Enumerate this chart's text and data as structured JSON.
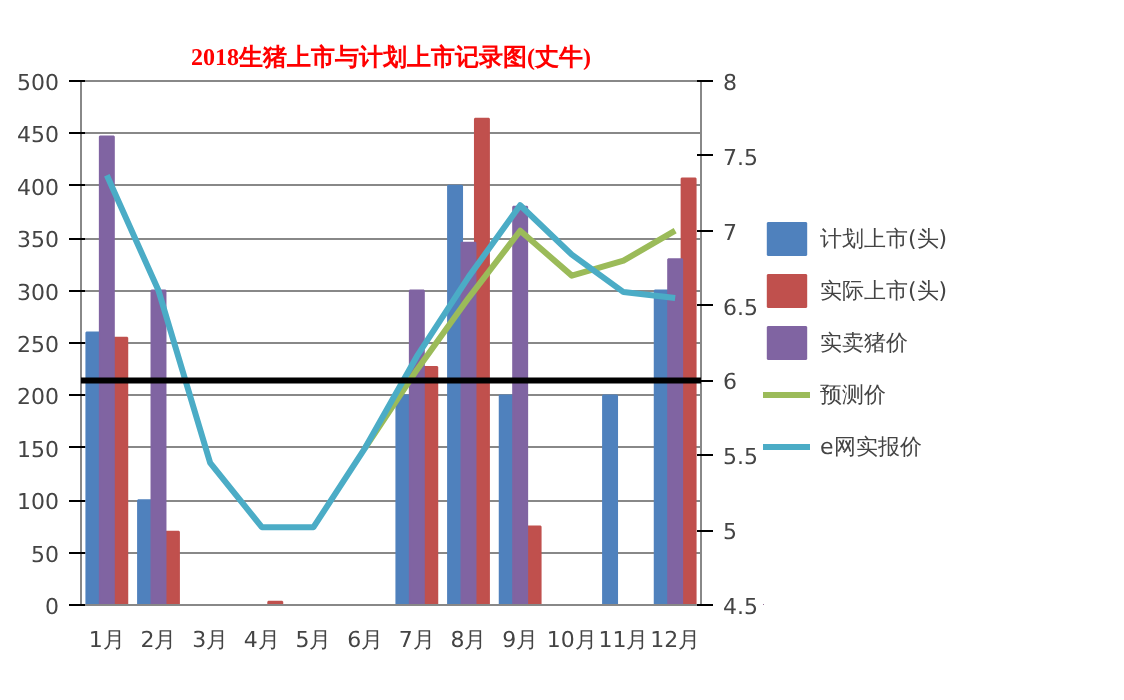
{
  "chart_data": {
    "type": "bar",
    "title": "2018生猪上市与计划上市记录图(丈牛)",
    "categories": [
      "1月",
      "2月",
      "3月",
      "4月",
      "5月",
      "6月",
      "7月",
      "8月",
      "9月",
      "10月",
      "11月",
      "12月"
    ],
    "series": [
      {
        "name": "计划上市(头)",
        "color": "#4f81bd",
        "values": [
          260,
          100,
          null,
          null,
          null,
          null,
          200,
          400,
          200,
          null,
          200,
          300
        ]
      },
      {
        "name": "实际上市(头)",
        "color": "#c0504d",
        "values": [
          255,
          70,
          null,
          3,
          null,
          null,
          227,
          464,
          75,
          null,
          null,
          407
        ]
      },
      {
        "name": "实卖猪价",
        "color": "#8064a2",
        "axis": "y2",
        "values": [
          7.63,
          6.6,
          null,
          null,
          null,
          null,
          6.6,
          6.92,
          7.16,
          null,
          null,
          6.81
        ]
      },
      {
        "name": "预测价",
        "color": "#9bbb59",
        "type": "line",
        "axis": "y2",
        "values": [
          null,
          null,
          null,
          null,
          null,
          5.55,
          6.07,
          6.55,
          7.0,
          6.7,
          6.8,
          7.0
        ]
      },
      {
        "name": "e网实报价",
        "color": "#4bacc6",
        "type": "line",
        "axis": "y2",
        "values": [
          7.37,
          6.6,
          5.45,
          5.02,
          5.02,
          5.55,
          6.16,
          6.69,
          7.17,
          6.84,
          6.59,
          6.55
        ]
      }
    ],
    "ylim": [
      0,
      500
    ],
    "yticks": [
      0,
      50,
      100,
      150,
      200,
      250,
      300,
      350,
      400,
      450,
      500
    ],
    "y2lim": [
      4.5,
      8
    ],
    "y2ticks": [
      4.5,
      5,
      5.5,
      6,
      6.5,
      7,
      7.5,
      8
    ],
    "ref_lines": [
      {
        "axis": "y2",
        "value": 6.0,
        "label": null,
        "color": "#000000"
      }
    ],
    "grid": "y",
    "legend": "right"
  }
}
